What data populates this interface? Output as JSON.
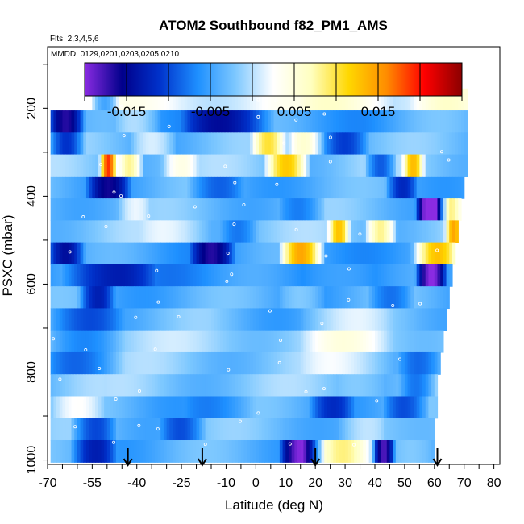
{
  "chart_data": {
    "type": "heatmap",
    "title": "ATOM2 Southbound f82_PM1_AMS",
    "flights_label": "Flts: 2,3,4,5,6",
    "dates_label": "MMDD: 0129,0201,0203,0205,0210",
    "xlabel": "Latitude (deg N)",
    "ylabel": "PSXC (mbar)",
    "xlim": [
      -70,
      82
    ],
    "ylim_reversed": [
      1010,
      60
    ],
    "x_ticks": [
      -70,
      -55,
      -40,
      -25,
      -10,
      0,
      10,
      20,
      30,
      40,
      50,
      60,
      70,
      80
    ],
    "x_tick_labels": [
      "-70",
      "-55",
      "-40",
      "-25",
      "-10",
      "0",
      "10",
      "20",
      "30",
      "40",
      "50",
      "60",
      "70",
      "80"
    ],
    "y_ticks": [
      200,
      400,
      600,
      800,
      1000
    ],
    "y_tick_labels": [
      "200",
      "400",
      "600",
      "800",
      "1000"
    ],
    "colorbar": {
      "min": -0.02,
      "max": 0.025,
      "tick_values": [
        -0.015,
        -0.005,
        0.005,
        0.015
      ],
      "tick_labels": [
        "-0.015",
        "-0.005",
        "0.005",
        "0.015"
      ],
      "colors": [
        "#8a2be2",
        "#00008b",
        "#0033cc",
        "#1e90ff",
        "#7ec8ff",
        "#ffffff",
        "#ffffc0",
        "#ffd700",
        "#ff8c00",
        "#ff0000",
        "#8b0000"
      ]
    },
    "pressure_levels": [
      180,
      230,
      280,
      330,
      380,
      430,
      480,
      530,
      580,
      630,
      680,
      730,
      780,
      830,
      880,
      930,
      980
    ],
    "level_lat_extent": [
      [
        -55,
        71
      ],
      [
        -69,
        71
      ],
      [
        -69,
        71
      ],
      [
        -69,
        71
      ],
      [
        -69,
        70
      ],
      [
        -69,
        69
      ],
      [
        -69,
        68
      ],
      [
        -69,
        67
      ],
      [
        -69,
        66
      ],
      [
        -69,
        65
      ],
      [
        -69,
        64
      ],
      [
        -69,
        63
      ],
      [
        -69,
        62
      ],
      [
        -69,
        61
      ],
      [
        -69,
        61
      ],
      [
        -69,
        60
      ],
      [
        -69,
        60
      ]
    ],
    "level_anomalies": [
      {
        "p": 180,
        "base": 0.002,
        "features": [
          [
            -54,
            -48,
            -0.008
          ],
          [
            20,
            40,
            0.004
          ],
          [
            55,
            68,
            0.003
          ]
        ]
      },
      {
        "p": 230,
        "base": -0.005,
        "features": [
          [
            -68,
            -60,
            -0.012
          ],
          [
            -45,
            -35,
            0.004
          ],
          [
            -20,
            0,
            -0.009
          ],
          [
            45,
            70,
            0.001
          ]
        ]
      },
      {
        "p": 280,
        "base": -0.003,
        "features": [
          [
            -68,
            -60,
            -0.01
          ],
          [
            -40,
            -30,
            0.006
          ],
          [
            0,
            8,
            0.012
          ],
          [
            12,
            20,
            0.01
          ],
          [
            25,
            35,
            -0.006
          ]
        ]
      },
      {
        "p": 330,
        "base": -0.002,
        "features": [
          [
            -52,
            -48,
            0.022
          ],
          [
            -46,
            -40,
            0.012
          ],
          [
            -30,
            -22,
            0.006
          ],
          [
            5,
            15,
            0.016
          ],
          [
            50,
            55,
            0.014
          ],
          [
            38,
            45,
            -0.009
          ]
        ]
      },
      {
        "p": 380,
        "base": -0.004,
        "features": [
          [
            -55,
            -45,
            -0.01
          ],
          [
            -20,
            -8,
            -0.006
          ],
          [
            45,
            52,
            -0.008
          ]
        ]
      },
      {
        "p": 430,
        "base": -0.003,
        "features": [
          [
            -45,
            -38,
            0.004
          ],
          [
            10,
            20,
            -0.005
          ],
          [
            55,
            62,
            -0.018
          ],
          [
            62,
            68,
            0.012
          ]
        ]
      },
      {
        "p": 480,
        "base": -0.002,
        "features": [
          [
            -35,
            -20,
            0.003
          ],
          [
            -10,
            -2,
            -0.004
          ],
          [
            25,
            30,
            0.014
          ],
          [
            38,
            45,
            0.012
          ],
          [
            64,
            68,
            0.015
          ]
        ]
      },
      {
        "p": 530,
        "base": -0.005,
        "features": [
          [
            -68,
            -60,
            -0.009
          ],
          [
            -20,
            -10,
            -0.01
          ],
          [
            10,
            20,
            0.018
          ],
          [
            55,
            66,
            0.016
          ]
        ]
      },
      {
        "p": 580,
        "base": -0.006,
        "features": [
          [
            -60,
            -40,
            -0.008
          ],
          [
            20,
            35,
            0.003
          ],
          [
            55,
            62,
            -0.016
          ]
        ]
      },
      {
        "p": 630,
        "base": -0.004,
        "features": [
          [
            -58,
            -50,
            -0.009
          ],
          [
            10,
            20,
            0.004
          ],
          [
            40,
            50,
            -0.006
          ]
        ]
      },
      {
        "p": 680,
        "base": -0.003,
        "features": [
          [
            -68,
            -50,
            -0.006
          ],
          [
            -10,
            10,
            -0.001
          ],
          [
            20,
            40,
            0.003
          ]
        ]
      },
      {
        "p": 730,
        "base": -0.001,
        "features": [
          [
            -68,
            -50,
            -0.004
          ],
          [
            20,
            40,
            0.004
          ]
        ]
      },
      {
        "p": 780,
        "base": -0.002,
        "features": [
          [
            -68,
            -50,
            -0.005
          ],
          [
            20,
            40,
            0.003
          ],
          [
            50,
            60,
            -0.005
          ]
        ]
      },
      {
        "p": 830,
        "base": -0.002,
        "features": [
          [
            -68,
            -55,
            0.001
          ],
          [
            30,
            40,
            0.002
          ],
          [
            50,
            58,
            -0.006
          ]
        ]
      },
      {
        "p": 880,
        "base": -0.004,
        "features": [
          [
            -68,
            -55,
            0.005
          ],
          [
            -20,
            -5,
            -0.003
          ],
          [
            20,
            30,
            -0.006
          ],
          [
            45,
            55,
            -0.007
          ]
        ]
      },
      {
        "p": 930,
        "base": -0.003,
        "features": [
          [
            -60,
            -50,
            -0.008
          ],
          [
            -30,
            -20,
            -0.006
          ],
          [
            30,
            40,
            0.003
          ],
          [
            45,
            58,
            -0.002
          ]
        ]
      },
      {
        "p": 980,
        "base": -0.004,
        "features": [
          [
            -60,
            -50,
            -0.008
          ],
          [
            10,
            20,
            -0.014
          ],
          [
            20,
            35,
            0.012
          ],
          [
            40,
            45,
            -0.016
          ],
          [
            50,
            60,
            0.002
          ]
        ]
      }
    ],
    "arrow_latitudes": [
      -43,
      -18,
      20,
      61
    ]
  }
}
